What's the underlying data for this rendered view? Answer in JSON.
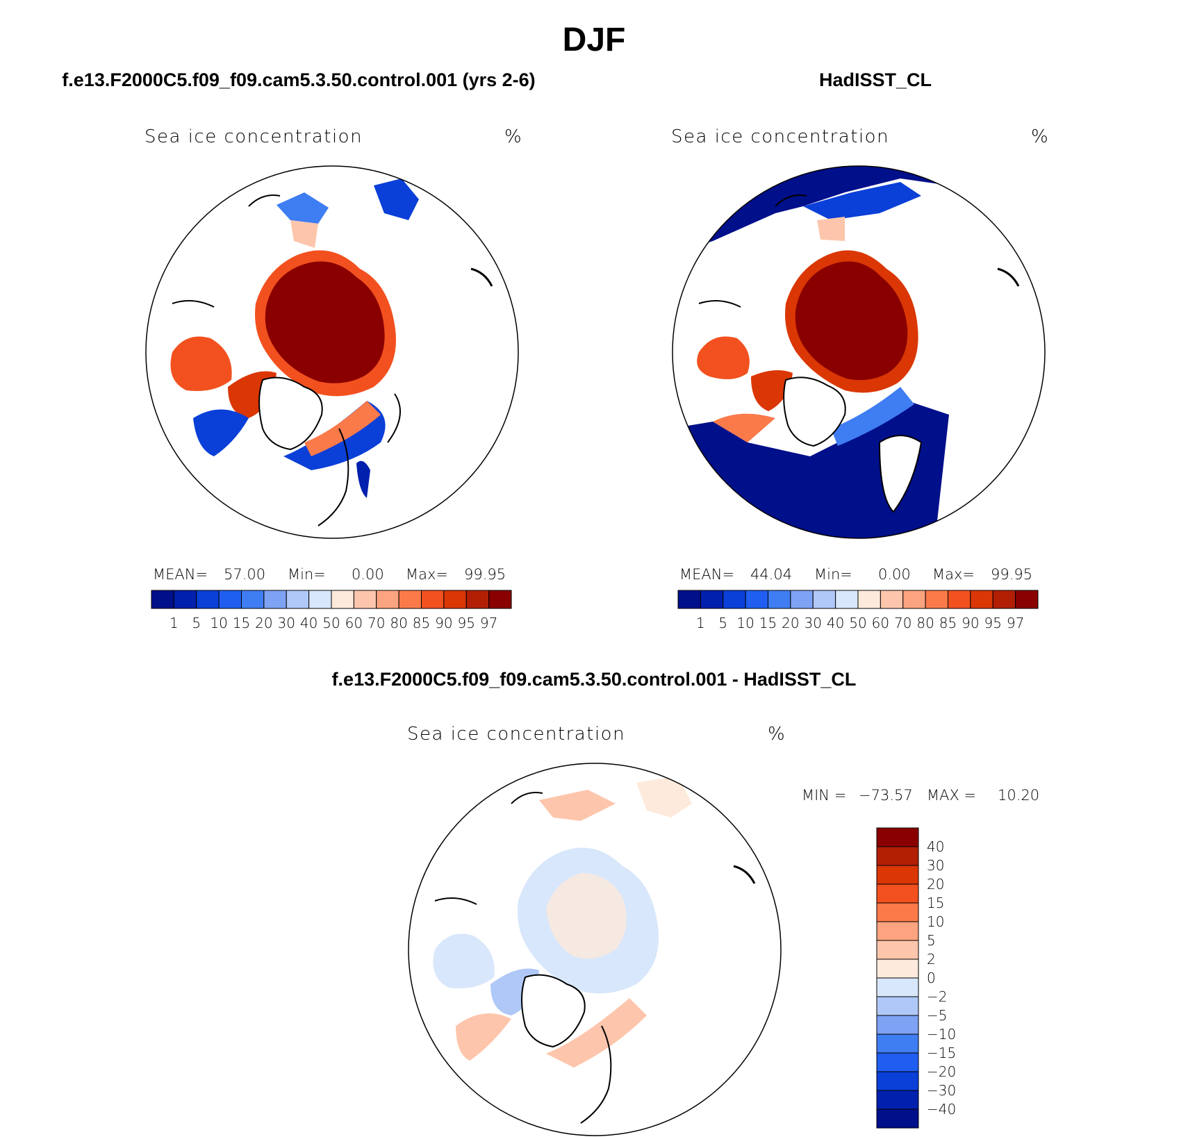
{
  "figure": {
    "title": "DJF"
  },
  "panels": [
    {
      "id": "model",
      "title": "f.e13.F2000C5.f09_f09.cam5.3.50.control.001 (yrs 2-6)",
      "variable": "Sea ice concentration",
      "units": "%",
      "stats": {
        "mean_label": "MEAN=",
        "mean": "57.00",
        "min_label": "Min=",
        "min": "0.00",
        "max_label": "Max=",
        "max": "99.95"
      }
    },
    {
      "id": "obs",
      "title": "HadISST_CL",
      "variable": "Sea ice concentration",
      "units": "%",
      "stats": {
        "mean_label": "MEAN=",
        "mean": "44.04",
        "min_label": "Min=",
        "min": "0.00",
        "max_label": "Max=",
        "max": "99.95"
      }
    },
    {
      "id": "diff",
      "title": "f.e13.F2000C5.f09_f09.cam5.3.50.control.001 - HadISST_CL",
      "variable": "Sea ice concentration",
      "units": "%",
      "stats": {
        "min_label": "MIN =",
        "min": "−73.57",
        "max_label": "MAX =",
        "max": "10.20"
      }
    }
  ],
  "colorbars": {
    "absolute": {
      "orientation": "horizontal",
      "levels": [
        "1",
        "5",
        "10",
        "15",
        "20",
        "30",
        "40",
        "50",
        "60",
        "70",
        "80",
        "85",
        "90",
        "95",
        "97"
      ],
      "colors": [
        "#000f8a",
        "#0020ad",
        "#0a3fd8",
        "#1f5ef0",
        "#3f7df2",
        "#7ea2f4",
        "#b0c8f7",
        "#d8e7fb",
        "#feeadc",
        "#fdc6ac",
        "#fca37f",
        "#fb7a4a",
        "#f2511f",
        "#da3705",
        "#b31f04",
        "#8a0000"
      ]
    },
    "difference": {
      "orientation": "vertical",
      "levels": [
        "−40",
        "−30",
        "−20",
        "−15",
        "−10",
        "−5",
        "−2",
        "0",
        "2",
        "5",
        "10",
        "15",
        "20",
        "30",
        "40"
      ],
      "colors": [
        "#000f8a",
        "#0020ad",
        "#0a3fd8",
        "#1f5ef0",
        "#3f7df2",
        "#7ea2f4",
        "#b0c8f7",
        "#d8e7fb",
        "#feeadc",
        "#fdc6ac",
        "#fca37f",
        "#fb7a4a",
        "#f2511f",
        "#da3705",
        "#b31f04",
        "#8a0000"
      ]
    }
  }
}
